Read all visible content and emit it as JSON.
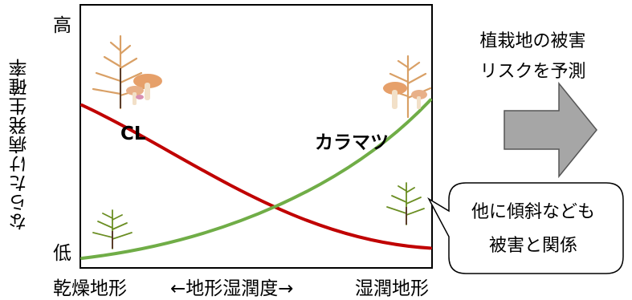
{
  "y_axis": {
    "label": "ならたけ病発生確率",
    "high": "高",
    "low": "低"
  },
  "x_axis": {
    "label": "←地形湿潤度→",
    "left": "乾燥地形",
    "right": "湿潤地形"
  },
  "series": {
    "cl": {
      "label": "CL",
      "color": "#c00000",
      "start": 0.62,
      "end": 0.07
    },
    "larch": {
      "label": "カラマツ",
      "color": "#70ad47",
      "start": 0.0,
      "end": 0.64
    }
  },
  "arrow_note": {
    "line1": "植栽地の被害",
    "line2": "リスクを予測",
    "color": "#a6a6a6"
  },
  "callout": {
    "line1": "他に傾斜なども",
    "line2": "被害と関係"
  }
}
